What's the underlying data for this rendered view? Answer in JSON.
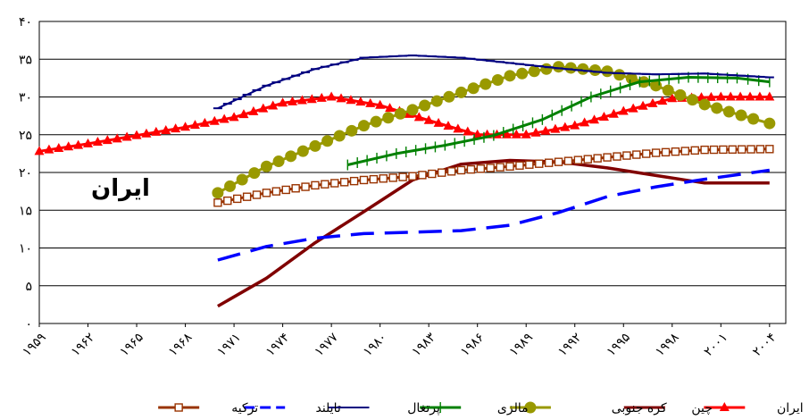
{
  "chart_data": {
    "type": "line",
    "annotation": "ایران",
    "ylim": [
      0,
      40
    ],
    "yticks": [
      {
        "value": 0,
        "label": "۰"
      },
      {
        "value": 5,
        "label": "۵"
      },
      {
        "value": 10,
        "label": "۱۰"
      },
      {
        "value": 15,
        "label": "۱۵"
      },
      {
        "value": 20,
        "label": "۲۰"
      },
      {
        "value": 25,
        "label": "۲۵"
      },
      {
        "value": 30,
        "label": "۳۰"
      },
      {
        "value": 35,
        "label": "۳۵"
      },
      {
        "value": 40,
        "label": "۴۰"
      }
    ],
    "xlim": [
      1959,
      2005
    ],
    "xticks": [
      {
        "value": 1959,
        "label": "۱۹۵۹"
      },
      {
        "value": 1962,
        "label": "۱۹۶۲"
      },
      {
        "value": 1965,
        "label": "۱۹۶۵"
      },
      {
        "value": 1968,
        "label": "۱۹۶۸"
      },
      {
        "value": 1971,
        "label": "۱۹۷۱"
      },
      {
        "value": 1974,
        "label": "۱۹۷۴"
      },
      {
        "value": 1977,
        "label": "۱۹۷۷"
      },
      {
        "value": 1980,
        "label": "۱۹۸۰"
      },
      {
        "value": 1983,
        "label": "۱۹۸۳"
      },
      {
        "value": 1986,
        "label": "۱۹۸۶"
      },
      {
        "value": 1989,
        "label": "۱۹۸۹"
      },
      {
        "value": 1992,
        "label": "۱۹۹۲"
      },
      {
        "value": 1995,
        "label": "۱۹۹۵"
      },
      {
        "value": 1998,
        "label": "۱۹۹۸"
      },
      {
        "value": 2001,
        "label": "۲۰۰۱"
      },
      {
        "value": 2004,
        "label": "۲۰۰۴"
      }
    ],
    "grid": "horizontal",
    "legend_position": "bottom",
    "series": [
      {
        "name": "ایران",
        "color": "#ff0000",
        "marker": "triangle",
        "dash": "solid",
        "points": [
          [
            1959,
            22.8
          ],
          [
            1962,
            23.8
          ],
          [
            1965,
            24.9
          ],
          [
            1968,
            26.0
          ],
          [
            1971,
            27.3
          ],
          [
            1974,
            29.2
          ],
          [
            1977,
            30.0
          ],
          [
            1980,
            28.9
          ],
          [
            1983,
            26.9
          ],
          [
            1986,
            25.0
          ],
          [
            1989,
            25.0
          ],
          [
            1992,
            26.2
          ],
          [
            1995,
            28.1
          ],
          [
            1998,
            29.8
          ],
          [
            2001,
            30.0
          ],
          [
            2004,
            30.0
          ]
        ]
      },
      {
        "name": "چین",
        "color": "#800000",
        "marker": "none",
        "dash": "solid",
        "points": [
          [
            1970,
            2.3
          ],
          [
            1973,
            6.0
          ],
          [
            1976,
            10.7
          ],
          [
            1979,
            14.8
          ],
          [
            1982,
            19.0
          ],
          [
            1985,
            21.1
          ],
          [
            1988,
            21.6
          ],
          [
            1991,
            21.4
          ],
          [
            1994,
            20.6
          ],
          [
            1997,
            19.6
          ],
          [
            2000,
            18.6
          ],
          [
            2004,
            18.6
          ]
        ]
      },
      {
        "name": "کره جنوبی",
        "color": "#999900",
        "marker": "circle",
        "dash": "solid",
        "points": [
          [
            1970,
            17.3
          ],
          [
            1973,
            20.8
          ],
          [
            1976,
            23.5
          ],
          [
            1979,
            26.2
          ],
          [
            1982,
            28.3
          ],
          [
            1985,
            30.6
          ],
          [
            1988,
            32.8
          ],
          [
            1991,
            34.0
          ],
          [
            1994,
            33.4
          ],
          [
            1997,
            31.5
          ],
          [
            2000,
            29.0
          ],
          [
            2003,
            27.1
          ],
          [
            2004,
            26.5
          ]
        ]
      },
      {
        "name": "مالزی",
        "color": "#008000",
        "marker": "plus",
        "dash": "solid",
        "points": [
          [
            1978,
            21.0
          ],
          [
            1981,
            22.5
          ],
          [
            1984,
            23.6
          ],
          [
            1987,
            24.9
          ],
          [
            1990,
            27.0
          ],
          [
            1993,
            30.0
          ],
          [
            1996,
            32.0
          ],
          [
            1999,
            32.6
          ],
          [
            2002,
            32.5
          ],
          [
            2004,
            32.0
          ]
        ]
      },
      {
        "name": "پرتغال",
        "color": "#000080",
        "marker": "dash",
        "dash": "solid",
        "points": [
          [
            1970,
            28.5
          ],
          [
            1973,
            31.5
          ],
          [
            1976,
            33.7
          ],
          [
            1979,
            35.2
          ],
          [
            1982,
            35.5
          ],
          [
            1985,
            35.2
          ],
          [
            1988,
            34.5
          ],
          [
            1991,
            33.8
          ],
          [
            1994,
            33.2
          ],
          [
            1997,
            33.0
          ],
          [
            2000,
            33.1
          ],
          [
            2004,
            32.6
          ]
        ]
      },
      {
        "name": "تایلند",
        "color": "#0000ff",
        "marker": "none",
        "dash": "dash",
        "points": [
          [
            1970,
            8.4
          ],
          [
            1973,
            10.2
          ],
          [
            1976,
            11.3
          ],
          [
            1979,
            11.9
          ],
          [
            1982,
            12.1
          ],
          [
            1985,
            12.3
          ],
          [
            1988,
            13.0
          ],
          [
            1991,
            14.7
          ],
          [
            1994,
            16.8
          ],
          [
            1997,
            18.1
          ],
          [
            2000,
            19.1
          ],
          [
            2004,
            20.3
          ]
        ]
      },
      {
        "name": "ترکیه",
        "color": "#993300",
        "marker": "square",
        "dash": "solid",
        "points": [
          [
            1970,
            16.0
          ],
          [
            1973,
            17.3
          ],
          [
            1976,
            18.3
          ],
          [
            1979,
            19.0
          ],
          [
            1982,
            19.5
          ],
          [
            1985,
            20.3
          ],
          [
            1988,
            20.8
          ],
          [
            1991,
            21.4
          ],
          [
            1994,
            22.0
          ],
          [
            1997,
            22.6
          ],
          [
            2000,
            23.0
          ],
          [
            2004,
            23.1
          ]
        ]
      }
    ]
  }
}
